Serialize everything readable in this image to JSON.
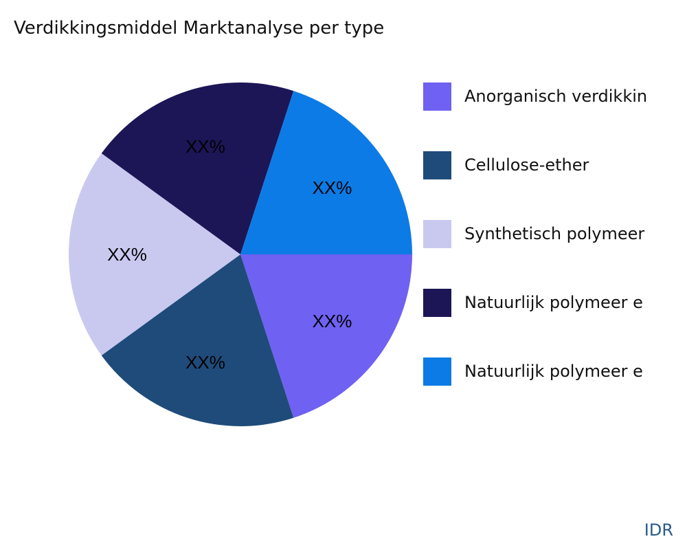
{
  "chart_data": {
    "type": "pie",
    "title": "Verdikkingsmiddel Marktanalyse per type",
    "categories": [
      "Anorganisch verdikkin",
      "Cellulose-ether",
      "Synthetisch polymeer",
      "Natuurlijk polymeer e",
      "Natuurlijk polymeer e"
    ],
    "values": [
      20,
      20,
      20,
      20,
      20
    ],
    "slice_labels": [
      "XX%",
      "XX%",
      "XX%",
      "XX%",
      "XX%"
    ],
    "colors": [
      "#6F61F2",
      "#1F4B7A",
      "#C9C9F0",
      "#1C1656",
      "#0C7BE6"
    ],
    "legend_position": "right",
    "start_angle": "3 o'clock",
    "direction": "clockwise"
  },
  "brand": "IDR"
}
